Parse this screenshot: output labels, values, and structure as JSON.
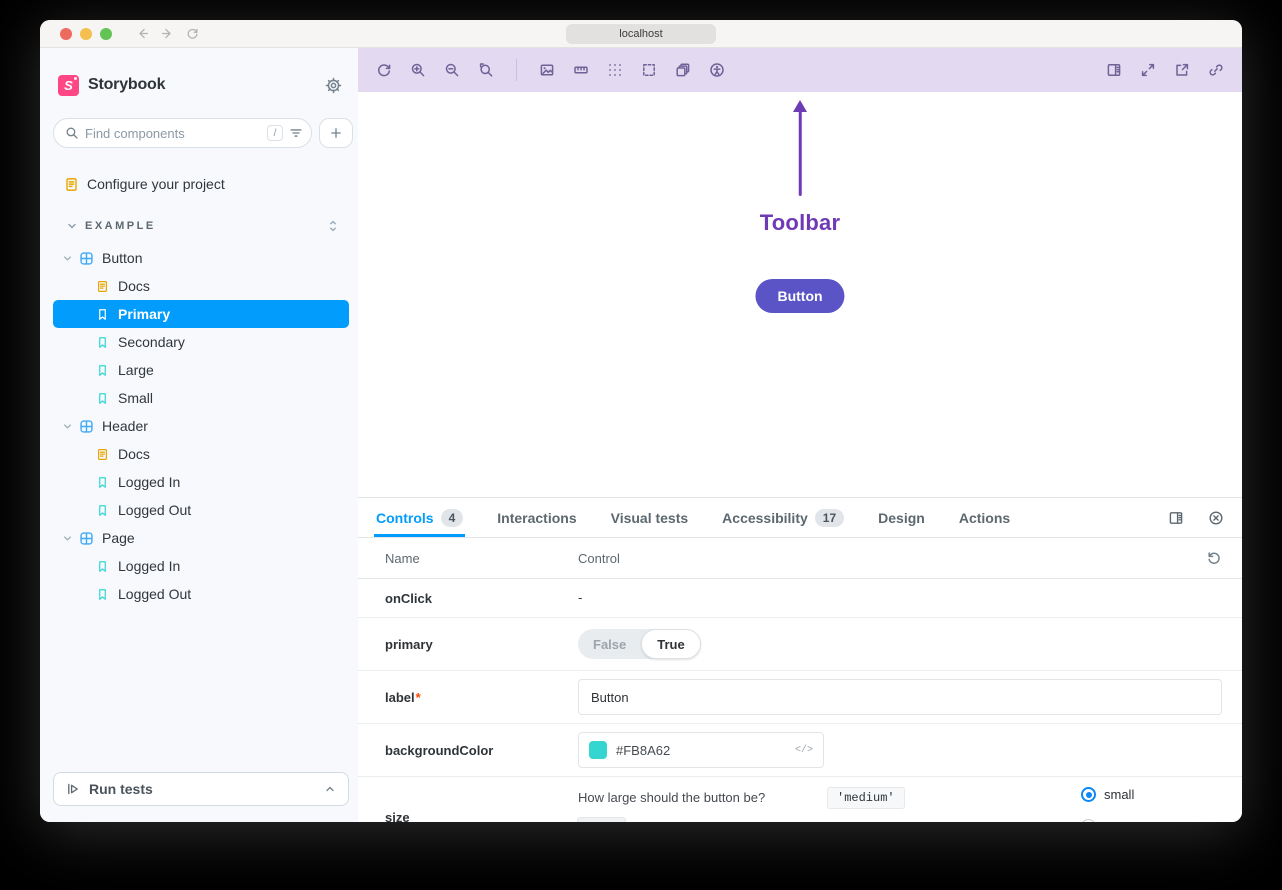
{
  "browser": {
    "address": "localhost",
    "traffic_lights": [
      "close",
      "minimize",
      "zoom"
    ],
    "nav_icons": [
      "back-icon",
      "forward-icon",
      "refresh-icon"
    ]
  },
  "sidebar": {
    "brand": "Storybook",
    "gear_icon": "gear-icon",
    "search": {
      "placeholder": "Find components",
      "shortcut": "/",
      "icons": [
        "search-icon",
        "filter-icon"
      ]
    },
    "add_button_icon": "plus-icon",
    "root_item": {
      "label": "Configure your project",
      "icon": "document-icon"
    },
    "section": {
      "label": "EXAMPLE",
      "collapse_icon": "expand-collapse-icon",
      "items": [
        {
          "type": "component",
          "label": "Button",
          "expanded": true
        },
        {
          "type": "docs",
          "label": "Docs"
        },
        {
          "type": "story",
          "label": "Primary",
          "selected": true
        },
        {
          "type": "story",
          "label": "Secondary"
        },
        {
          "type": "story",
          "label": "Large"
        },
        {
          "type": "story",
          "label": "Small"
        },
        {
          "type": "component",
          "label": "Header",
          "expanded": true
        },
        {
          "type": "docs",
          "label": "Docs"
        },
        {
          "type": "story",
          "label": "Logged In"
        },
        {
          "type": "story",
          "label": "Logged Out"
        },
        {
          "type": "component",
          "label": "Page",
          "expanded": true
        },
        {
          "type": "story",
          "label": "Logged In"
        },
        {
          "type": "story",
          "label": "Logged Out"
        }
      ]
    },
    "run_tests": {
      "label": "Run tests",
      "icons": [
        "run-tests-icon",
        "chevron-up-icon"
      ]
    }
  },
  "canvas": {
    "toolbar_icons_left": [
      "remount-icon",
      "zoom-in-icon",
      "zoom-out-icon",
      "reset-zoom-icon",
      "divider",
      "background-icon",
      "measure-icon",
      "grid-icon",
      "outline-icon",
      "viewport-icon",
      "accessibility-icon"
    ],
    "toolbar_icons_right": [
      "panel-toggle-icon",
      "fullscreen-icon",
      "open-new-tab-icon",
      "copy-link-icon"
    ],
    "toolbar_background": "#E3D9F1",
    "annotation": {
      "label": "Toolbar",
      "color": "#6F3BB5"
    },
    "preview_button": {
      "label": "Button",
      "background": "#5A54C6"
    }
  },
  "panel": {
    "tabs": [
      {
        "label": "Controls",
        "badge": "4",
        "active": true
      },
      {
        "label": "Interactions",
        "badge": null,
        "active": false
      },
      {
        "label": "Visual tests",
        "badge": null,
        "active": false
      },
      {
        "label": "Accessibility",
        "badge": "17",
        "active": false
      },
      {
        "label": "Design",
        "badge": null,
        "active": false
      },
      {
        "label": "Actions",
        "badge": null,
        "active": false
      }
    ],
    "tabs_right_icons": [
      "move-panel-icon",
      "close-panel-icon"
    ],
    "accent": "#029CFD",
    "table": {
      "columns": [
        "Name",
        "Control"
      ],
      "reset_icon": "undo-icon",
      "rows": [
        {
          "name": "onClick",
          "required": false,
          "control": {
            "type": "text",
            "value": "-"
          }
        },
        {
          "name": "primary",
          "required": false,
          "control": {
            "type": "toggle",
            "options": [
              "False",
              "True"
            ],
            "selected": "True"
          }
        },
        {
          "name": "label",
          "required": true,
          "control": {
            "type": "input",
            "value": "Button"
          }
        },
        {
          "name": "backgroundColor",
          "required": false,
          "control": {
            "type": "color",
            "value": "#FB8A62",
            "swatch": "#35D6D0",
            "code_icon": "</>"
          }
        },
        {
          "name": "size",
          "required": false,
          "control": {
            "type": "option",
            "description": "How large should the button be?",
            "default": "'medium'",
            "radio_label": "small",
            "radio_selected": true
          }
        }
      ]
    }
  }
}
